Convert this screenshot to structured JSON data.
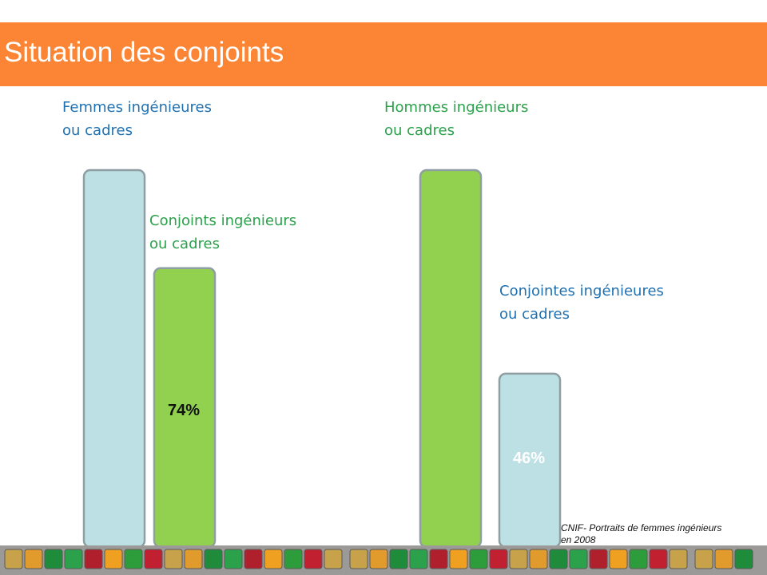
{
  "slide": {
    "title": "Situation des conjoints",
    "source": "CNIF- Portraits de femmes ingénieurs\nen 2008"
  },
  "chart_data": [
    {
      "type": "bar",
      "categories": [
        "Femmes ingénieures\nou cadres",
        "Conjoints ingénieurs\nou cadres"
      ],
      "values": [
        100,
        74
      ],
      "value_labels": [
        "",
        "74%"
      ],
      "ylim": [
        0,
        100
      ],
      "colors": [
        "#bde0e4",
        "#92d050"
      ],
      "label_colors": [
        "#1f70b0",
        "#2aa14a"
      ],
      "value_label_color": "#111111"
    },
    {
      "type": "bar",
      "categories": [
        "Hommes ingénieurs\nou cadres",
        "Conjointes ingénieures\nou cadres"
      ],
      "values": [
        100,
        46
      ],
      "value_labels": [
        "",
        "46%"
      ],
      "ylim": [
        0,
        100
      ],
      "colors": [
        "#92d050",
        "#bde0e4"
      ],
      "label_colors": [
        "#2aa14a",
        "#1f70b0"
      ],
      "value_label_color": "#ffffff"
    }
  ],
  "decoration": {
    "tile_colors": [
      "#c8a24a",
      "#e19a2c",
      "#1e8c3a",
      "#2aa14a",
      "#b0202c",
      "#f0a020",
      "#2d9d3c",
      "#c02030"
    ]
  }
}
